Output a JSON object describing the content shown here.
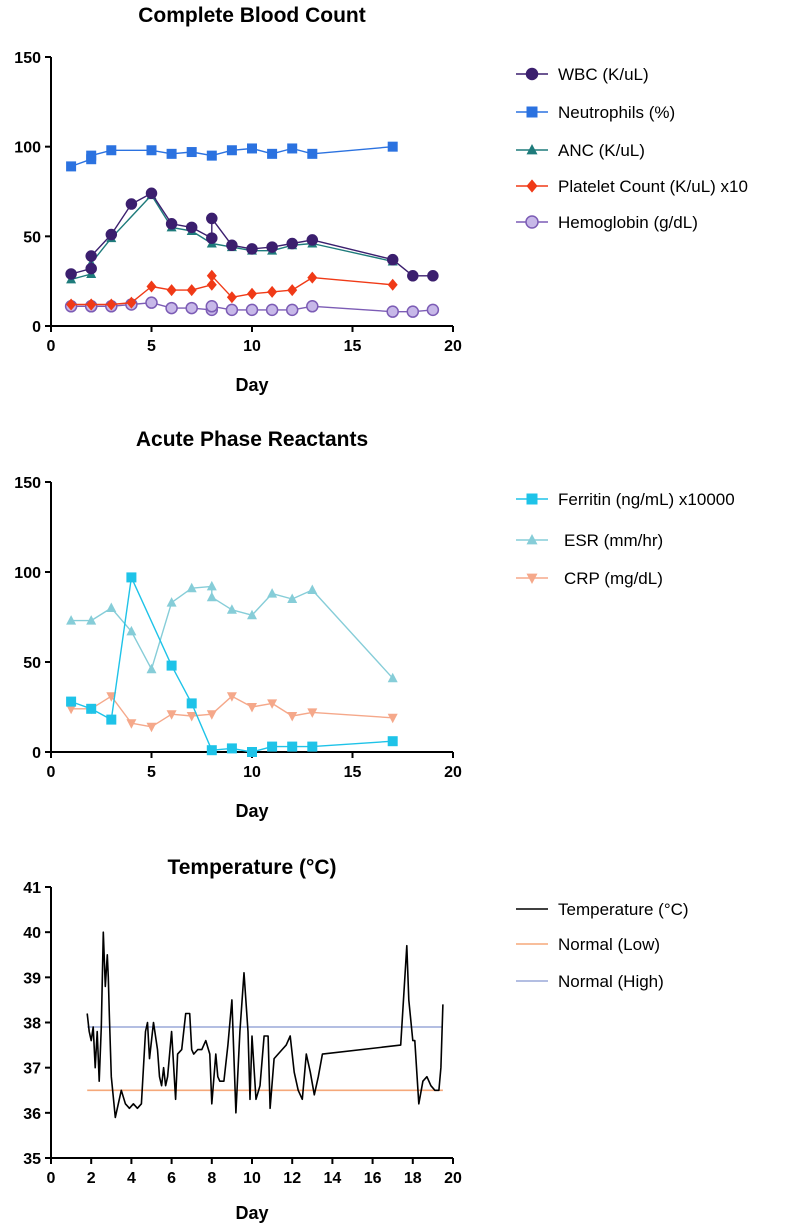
{
  "chart_data": [
    {
      "type": "line",
      "title": "Complete Blood Count",
      "xlabel": "Day",
      "ylabel": "",
      "xlim": [
        0,
        20
      ],
      "ylim": [
        0,
        150
      ],
      "xticks": [
        0,
        5,
        10,
        15,
        20
      ],
      "yticks": [
        0,
        50,
        100,
        150
      ],
      "series": [
        {
          "name": "WBC (K/uL)",
          "color": "#3b1f6e",
          "marker": "circle",
          "x": [
            1,
            2,
            2,
            3,
            4,
            5,
            6,
            7,
            8,
            8,
            9,
            10,
            11,
            12,
            13,
            17,
            18,
            19
          ],
          "y": [
            29,
            32,
            39,
            51,
            68,
            74,
            57,
            55,
            49,
            60,
            45,
            43,
            44,
            46,
            48,
            37,
            28,
            28
          ]
        },
        {
          "name": "Neutrophils (%)",
          "color": "#2b72e0",
          "marker": "square",
          "x": [
            1,
            2,
            2,
            3,
            5,
            6,
            7,
            8,
            9,
            10,
            11,
            12,
            13,
            17
          ],
          "y": [
            89,
            93,
            95,
            98,
            98,
            96,
            97,
            95,
            98,
            99,
            96,
            99,
            96,
            100
          ]
        },
        {
          "name": "ANC (K/uL)",
          "color": "#1e7b7b",
          "marker": "triangle-up",
          "x": [
            1,
            2,
            2,
            3,
            5,
            6,
            7,
            8,
            9,
            10,
            11,
            12,
            13,
            17
          ],
          "y": [
            26,
            29,
            35,
            49,
            73,
            55,
            53,
            46,
            44,
            42,
            42,
            45,
            46,
            36
          ]
        },
        {
          "name": "Platelet Count (K/uL) x10",
          "color": "#f03a17",
          "marker": "diamond",
          "x": [
            1,
            2,
            2,
            3,
            4,
            5,
            6,
            7,
            8,
            8,
            9,
            10,
            11,
            12,
            13,
            17
          ],
          "y": [
            12,
            12,
            12,
            12,
            13,
            22,
            20,
            20,
            23,
            28,
            16,
            18,
            19,
            20,
            27,
            23
          ]
        },
        {
          "name": "Hemoglobin (g/dL)",
          "color": "#7c5cb5",
          "fill": "#c7b8e8",
          "marker": "circle",
          "x": [
            1,
            2,
            2,
            3,
            4,
            5,
            6,
            7,
            8,
            8,
            9,
            10,
            11,
            12,
            13,
            17,
            18,
            19
          ],
          "y": [
            11,
            11,
            11,
            11,
            12,
            13,
            10,
            10,
            9,
            11,
            9,
            9,
            9,
            9,
            11,
            8,
            8,
            9
          ]
        }
      ]
    },
    {
      "type": "line",
      "title": "Acute Phase Reactants",
      "xlabel": "Day",
      "ylabel": "",
      "xlim": [
        0,
        20
      ],
      "ylim": [
        0,
        150
      ],
      "xticks": [
        0,
        5,
        10,
        15,
        20
      ],
      "yticks": [
        0,
        50,
        100,
        150
      ],
      "series": [
        {
          "name": "Ferritin (ng/mL) x10000",
          "color": "#1ec3e8",
          "marker": "square",
          "x": [
            1,
            2,
            3,
            4,
            6,
            7,
            8,
            9,
            10,
            11,
            12,
            13,
            17
          ],
          "y": [
            28,
            24,
            18,
            97,
            48,
            27,
            1,
            2,
            0,
            3,
            3,
            3,
            6
          ]
        },
        {
          "name": "ESR (mm/hr)",
          "color": "#86cdd8",
          "marker": "triangle-up",
          "x": [
            1,
            2,
            3,
            4,
            5,
            6,
            7,
            8,
            8,
            9,
            10,
            11,
            12,
            13,
            17
          ],
          "y": [
            73,
            73,
            80,
            67,
            46,
            83,
            91,
            92,
            86,
            79,
            76,
            88,
            85,
            90,
            41
          ]
        },
        {
          "name": "CRP (mg/dL)",
          "color": "#f5a88a",
          "marker": "triangle-down",
          "x": [
            1,
            2,
            3,
            4,
            5,
            6,
            7,
            8,
            9,
            10,
            11,
            12,
            13,
            17
          ],
          "y": [
            24,
            24,
            31,
            16,
            14,
            21,
            20,
            21,
            31,
            25,
            27,
            20,
            22,
            19
          ]
        }
      ]
    },
    {
      "type": "line",
      "title": "Temperature (°C)",
      "xlabel": "Day",
      "ylabel": "",
      "xlim": [
        0,
        20
      ],
      "ylim": [
        35,
        41
      ],
      "xticks": [
        0,
        2,
        4,
        6,
        8,
        10,
        12,
        14,
        16,
        18,
        20
      ],
      "yticks": [
        35,
        36,
        37,
        38,
        39,
        40,
        41
      ],
      "series": [
        {
          "name": "Temperature (°C)",
          "color": "#000000",
          "marker": "none",
          "x": [
            1.8,
            1.9,
            2.0,
            2.1,
            2.2,
            2.3,
            2.4,
            2.5,
            2.6,
            2.7,
            2.8,
            2.85,
            2.9,
            3.0,
            3.2,
            3.5,
            3.7,
            3.9,
            4.1,
            4.3,
            4.5,
            4.7,
            4.8,
            4.9,
            5.1,
            5.3,
            5.4,
            5.5,
            5.6,
            5.7,
            5.8,
            6.0,
            6.2,
            6.3,
            6.5,
            6.7,
            6.9,
            7.0,
            7.1,
            7.3,
            7.5,
            7.7,
            7.9,
            8.0,
            8.2,
            8.3,
            8.4,
            8.6,
            8.8,
            9.0,
            9.2,
            9.4,
            9.6,
            9.8,
            9.9,
            10.0,
            10.2,
            10.4,
            10.6,
            10.8,
            10.9,
            11.1,
            11.3,
            11.5,
            11.7,
            11.9,
            12.1,
            12.3,
            12.5,
            12.7,
            12.9,
            13.1,
            13.3,
            13.5,
            17.4,
            17.7,
            17.8,
            18.0,
            18.1,
            18.3,
            18.5,
            18.7,
            18.9,
            19.1,
            19.3,
            19.4,
            19.5
          ],
          "y": [
            38.2,
            37.8,
            37.6,
            37.9,
            37.0,
            37.8,
            36.7,
            37.9,
            40.0,
            38.8,
            39.5,
            39.0,
            38.2,
            36.8,
            35.9,
            36.5,
            36.2,
            36.1,
            36.2,
            36.1,
            36.2,
            37.8,
            38.0,
            37.2,
            38.0,
            37.4,
            36.8,
            36.6,
            37.0,
            36.6,
            36.8,
            37.8,
            36.3,
            37.3,
            37.4,
            38.2,
            38.2,
            37.4,
            37.3,
            37.4,
            37.4,
            37.6,
            37.3,
            36.2,
            37.3,
            36.8,
            36.7,
            36.7,
            37.5,
            38.5,
            36.0,
            37.8,
            39.1,
            37.8,
            36.3,
            37.7,
            36.3,
            36.6,
            37.7,
            37.7,
            36.1,
            37.2,
            37.3,
            37.4,
            37.5,
            37.7,
            36.9,
            36.5,
            36.3,
            37.3,
            36.9,
            36.4,
            36.8,
            37.3,
            37.5,
            39.7,
            38.5,
            37.6,
            37.6,
            36.2,
            36.7,
            36.8,
            36.6,
            36.5,
            36.5,
            37.0,
            38.4
          ]
        },
        {
          "name": "Normal (Low)",
          "color": "#f5a87a",
          "marker": "none",
          "x": [
            1.8,
            19.5
          ],
          "y": [
            36.5,
            36.5
          ]
        },
        {
          "name": "Normal (High)",
          "color": "#9aa8d8",
          "marker": "none",
          "x": [
            1.8,
            19.5
          ],
          "y": [
            37.9,
            37.9
          ]
        }
      ]
    }
  ]
}
